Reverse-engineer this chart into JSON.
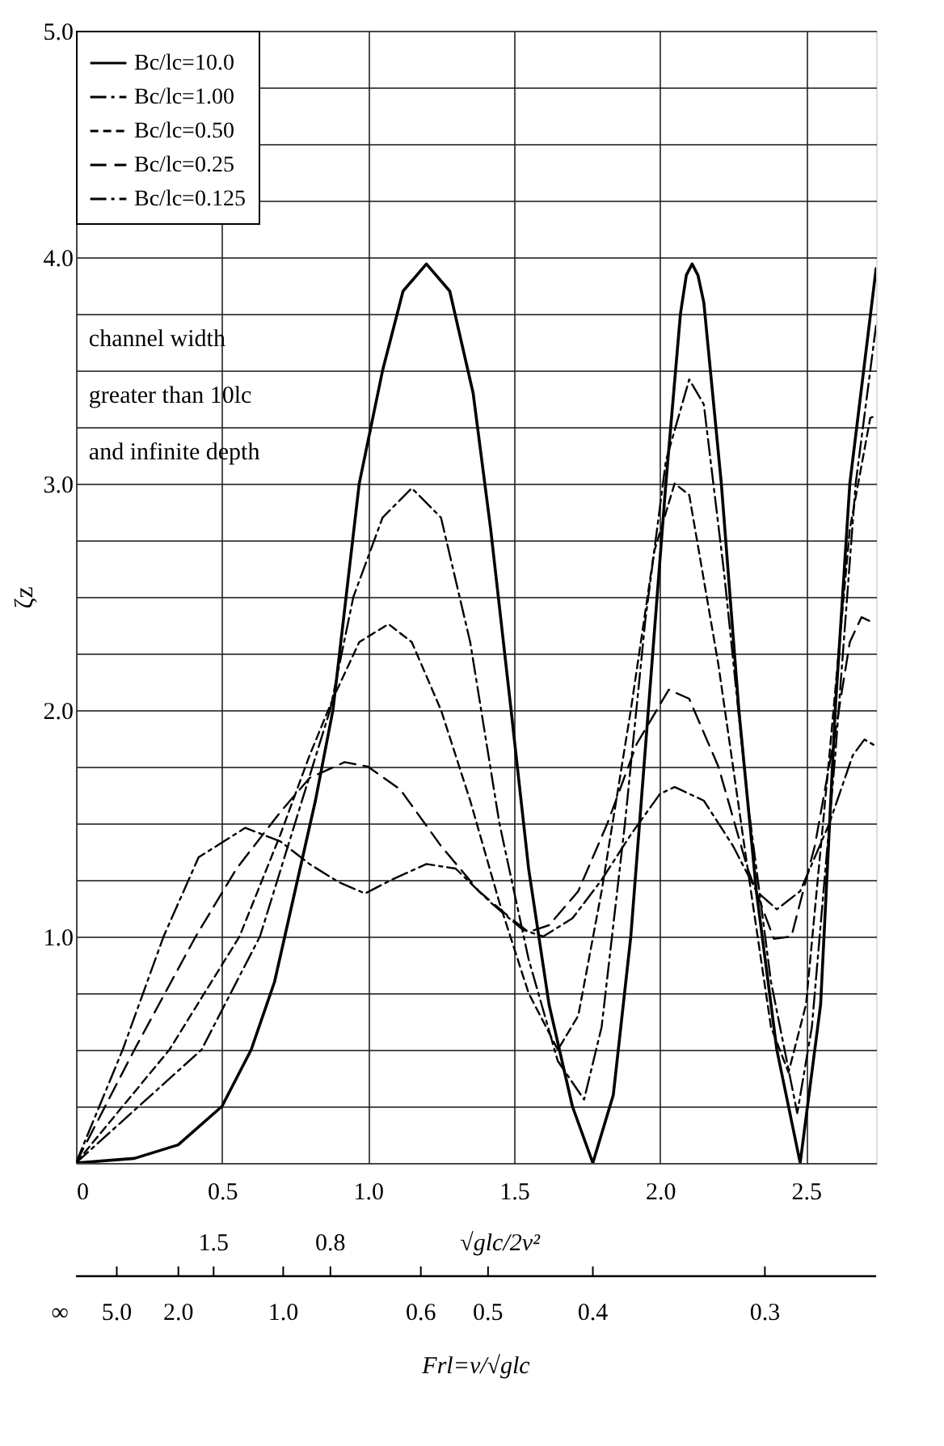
{
  "chart_data": {
    "type": "line",
    "ylabel": "ζz",
    "xlim": [
      0,
      2.74
    ],
    "ylim": [
      0,
      5
    ],
    "xticks": [
      0,
      0.5,
      {
        "value": 1,
        "label": "1.0"
      },
      1.5,
      {
        "value": 2,
        "label": "2.0"
      },
      2.5
    ],
    "yticks": [
      {
        "value": 0,
        "label": null
      },
      {
        "value": 0.25,
        "label": null
      },
      {
        "value": 0.5,
        "label": null
      },
      {
        "value": 0.75,
        "label": null
      },
      {
        "value": 1,
        "label": "1.0"
      },
      {
        "value": 1.25,
        "label": null
      },
      {
        "value": 1.5,
        "label": null
      },
      {
        "value": 1.75,
        "label": null
      },
      {
        "value": 2,
        "label": "2.0"
      },
      {
        "value": 2.25,
        "label": null
      },
      {
        "value": 2.5,
        "label": null
      },
      {
        "value": 2.75,
        "label": null
      },
      {
        "value": 3,
        "label": "3.0"
      },
      {
        "value": 3.25,
        "label": null
      },
      {
        "value": 3.5,
        "label": null
      },
      {
        "value": 3.75,
        "label": null
      },
      {
        "value": 4,
        "label": "4.0"
      },
      {
        "value": 4.25,
        "label": null
      },
      {
        "value": 4.5,
        "label": null
      },
      {
        "value": 4.75,
        "label": null
      },
      {
        "value": 5,
        "label": "5.0"
      }
    ],
    "grid": true,
    "legend": "top left",
    "marker": "none",
    "annotations": [
      "channel width\ngreater than 10lc\nand infinite depth",
      "√glc/2v²",
      "Frl=v/√glc",
      "1.5",
      "0.8",
      "∞",
      "5.0",
      "2.0",
      "1.0",
      "0.6",
      "0.5",
      "0.4",
      "0.3"
    ],
    "series": [
      {
        "name": "Bc/lc=10.0",
        "color": "#000000",
        "line_style": "solid",
        "x": [
          0,
          0.2,
          0.35,
          0.5,
          0.6,
          0.68,
          0.75,
          0.82,
          0.88,
          0.97,
          1.05,
          1.12,
          1.2,
          1.28,
          1.36,
          1.42,
          1.49,
          1.55,
          1.62,
          1.7,
          1.77,
          1.84,
          1.9,
          1.96,
          2.02,
          2.07,
          2.09,
          2.11,
          2.13,
          2.15,
          2.21,
          2.27,
          2.33,
          2.4,
          2.48,
          2.55,
          2.6,
          2.65,
          2.74
        ],
        "values": [
          0,
          0.02,
          0.08,
          0.25,
          0.5,
          0.8,
          1.2,
          1.6,
          2.0,
          3.0,
          3.5,
          3.85,
          3.97,
          3.85,
          3.4,
          2.8,
          2.0,
          1.3,
          0.7,
          0.25,
          0,
          0.3,
          1.0,
          2.0,
          3.0,
          3.75,
          3.92,
          3.97,
          3.92,
          3.8,
          3.0,
          2.0,
          1.2,
          0.5,
          0,
          0.7,
          2.0,
          3.0,
          3.95
        ]
      },
      {
        "name": "Bc/lc=1.00",
        "color": "#000000",
        "line_style": "dashdot",
        "x": [
          0,
          0.43,
          0.63,
          0.75,
          0.87,
          0.95,
          1.05,
          1.15,
          1.25,
          1.35,
          1.45,
          1.55,
          1.65,
          1.74,
          1.8,
          1.88,
          1.95,
          2.02,
          2.1,
          2.15,
          2.22,
          2.3,
          2.38,
          2.47,
          2.52,
          2.6,
          2.67,
          2.74
        ],
        "values": [
          0,
          0.5,
          1.0,
          1.5,
          2.0,
          2.5,
          2.85,
          2.98,
          2.85,
          2.3,
          1.5,
          0.9,
          0.45,
          0.28,
          0.6,
          1.5,
          2.4,
          3.1,
          3.46,
          3.35,
          2.6,
          1.6,
          0.8,
          0.22,
          0.6,
          1.8,
          3.0,
          3.7
        ]
      },
      {
        "name": "Bc/lc=0.50",
        "color": "#000000",
        "line_style": "dashed",
        "x": [
          0,
          0.32,
          0.56,
          0.7,
          0.8,
          0.88,
          0.97,
          1.07,
          1.15,
          1.25,
          1.35,
          1.45,
          1.55,
          1.65,
          1.72,
          1.8,
          1.9,
          1.98,
          2.05,
          2.1,
          2.2,
          2.3,
          2.38,
          2.44,
          2.5,
          2.58,
          2.65,
          2.72,
          2.74
        ],
        "values": [
          0,
          0.5,
          1.0,
          1.45,
          1.8,
          2.05,
          2.3,
          2.38,
          2.3,
          2.0,
          1.6,
          1.15,
          0.75,
          0.5,
          0.65,
          1.2,
          2.0,
          2.7,
          3.0,
          2.95,
          2.2,
          1.3,
          0.6,
          0.4,
          0.7,
          1.8,
          2.8,
          3.29,
          3.3
        ]
      },
      {
        "name": "Bc/lc=0.25",
        "color": "#000000",
        "line_style": "longdash",
        "x": [
          0,
          0.2,
          0.41,
          0.55,
          0.7,
          0.8,
          0.92,
          1.0,
          1.11,
          1.25,
          1.38,
          1.48,
          1.55,
          1.62,
          1.72,
          1.82,
          1.92,
          2.03,
          2.1,
          2.2,
          2.3,
          2.39,
          2.45,
          2.53,
          2.6,
          2.65,
          2.69,
          2.74
        ],
        "values": [
          0,
          0.5,
          1.0,
          1.3,
          1.55,
          1.7,
          1.77,
          1.75,
          1.65,
          1.4,
          1.2,
          1.09,
          1.02,
          1.05,
          1.2,
          1.5,
          1.85,
          2.09,
          2.05,
          1.75,
          1.3,
          0.99,
          1.0,
          1.4,
          1.9,
          2.3,
          2.41,
          2.38
        ]
      },
      {
        "name": "Bc/lc=0.125",
        "color": "#000000",
        "line_style": "dashdot",
        "x": [
          0,
          0.16,
          0.3,
          0.42,
          0.58,
          0.7,
          0.8,
          0.9,
          0.99,
          1.08,
          1.2,
          1.3,
          1.42,
          1.53,
          1.6,
          1.7,
          1.8,
          1.9,
          2.0,
          2.05,
          2.15,
          2.25,
          2.33,
          2.4,
          2.48,
          2.58,
          2.66,
          2.7,
          2.74
        ],
        "values": [
          0,
          0.5,
          1.0,
          1.35,
          1.48,
          1.42,
          1.32,
          1.24,
          1.19,
          1.25,
          1.32,
          1.3,
          1.15,
          1.03,
          1.0,
          1.08,
          1.25,
          1.45,
          1.63,
          1.66,
          1.6,
          1.4,
          1.2,
          1.12,
          1.2,
          1.5,
          1.8,
          1.87,
          1.84
        ]
      }
    ]
  }
}
